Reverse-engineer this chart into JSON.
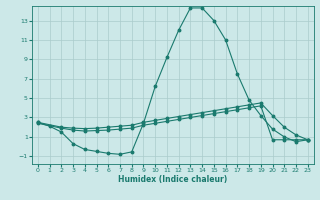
{
  "xlabel": "Humidex (Indice chaleur)",
  "bg_color": "#cce8e8",
  "line_color": "#1a7a6e",
  "grid_color": "#aacccc",
  "xlim": [
    -0.5,
    23.5
  ],
  "ylim": [
    -1.8,
    14.5
  ],
  "yticks": [
    -1,
    1,
    3,
    5,
    7,
    9,
    11,
    13
  ],
  "xticks": [
    0,
    1,
    2,
    3,
    4,
    5,
    6,
    7,
    8,
    9,
    10,
    11,
    12,
    13,
    14,
    15,
    16,
    17,
    18,
    19,
    20,
    21,
    22,
    23
  ],
  "line1_x": [
    0,
    1,
    2,
    3,
    4,
    5,
    6,
    7,
    8,
    9,
    10,
    11,
    12,
    13,
    14,
    15,
    16,
    17,
    18,
    19,
    20,
    21,
    22,
    23
  ],
  "line1_y": [
    2.5,
    2.1,
    1.5,
    0.3,
    -0.3,
    -0.5,
    -0.7,
    -0.8,
    -0.55,
    2.4,
    6.2,
    9.2,
    12.0,
    14.3,
    14.3,
    13.0,
    11.0,
    7.5,
    4.8,
    3.2,
    1.8,
    1.0,
    0.5,
    0.7
  ],
  "line2_x": [
    0,
    2,
    3,
    4,
    5,
    6,
    7,
    8,
    9,
    10,
    11,
    12,
    13,
    14,
    15,
    16,
    17,
    18,
    19,
    20,
    21,
    22,
    23
  ],
  "line2_y": [
    2.5,
    2.0,
    1.9,
    1.85,
    1.9,
    2.0,
    2.1,
    2.2,
    2.5,
    2.7,
    2.9,
    3.1,
    3.3,
    3.5,
    3.7,
    3.9,
    4.1,
    4.3,
    4.5,
    3.2,
    2.0,
    1.2,
    0.7
  ],
  "line3_x": [
    0,
    2,
    3,
    4,
    5,
    6,
    7,
    8,
    9,
    10,
    11,
    12,
    13,
    14,
    15,
    16,
    17,
    18,
    19,
    20,
    21,
    22,
    23
  ],
  "line3_y": [
    2.4,
    1.9,
    1.7,
    1.6,
    1.65,
    1.7,
    1.8,
    1.9,
    2.2,
    2.4,
    2.6,
    2.8,
    3.0,
    3.2,
    3.4,
    3.6,
    3.8,
    4.0,
    4.2,
    0.7,
    0.7,
    0.7,
    0.7
  ]
}
